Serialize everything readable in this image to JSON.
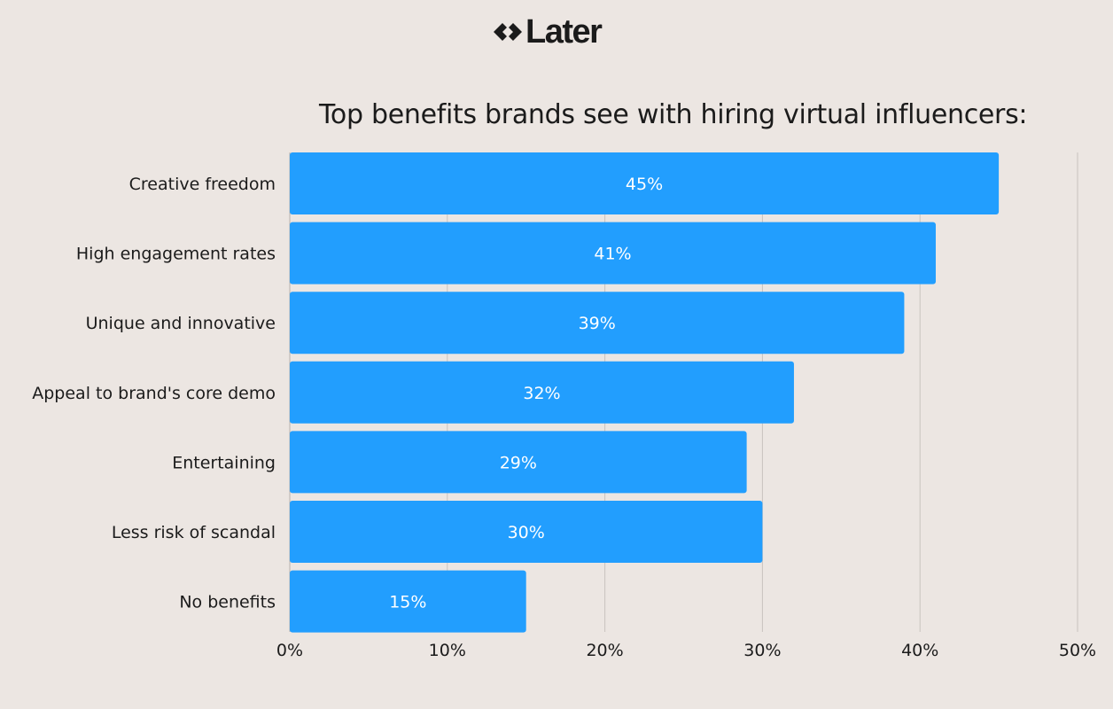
{
  "logo": {
    "text": "Later",
    "icon": "diamond-arrows-icon"
  },
  "chart_data": {
    "type": "bar",
    "orientation": "horizontal",
    "title": "Top benefits brands see with hiring virtual influencers:",
    "categories": [
      "Creative freedom",
      "High engagement rates",
      "Unique and innovative",
      "Appeal to brand's core demo",
      "Entertaining",
      "Less risk of scandal",
      "No benefits"
    ],
    "values": [
      45,
      41,
      39,
      32,
      29,
      30,
      15
    ],
    "value_labels": [
      "45%",
      "41%",
      "39%",
      "32%",
      "29%",
      "30%",
      "15%"
    ],
    "xlim": [
      0,
      50
    ],
    "xticks": [
      0,
      10,
      20,
      30,
      40,
      50
    ],
    "xtick_labels": [
      "0%",
      "10%",
      "20%",
      "30%",
      "40%",
      "50%"
    ],
    "grid": true,
    "bar_color": "#229efe",
    "label_color": "#ffffff",
    "background": "#ece6e2"
  }
}
